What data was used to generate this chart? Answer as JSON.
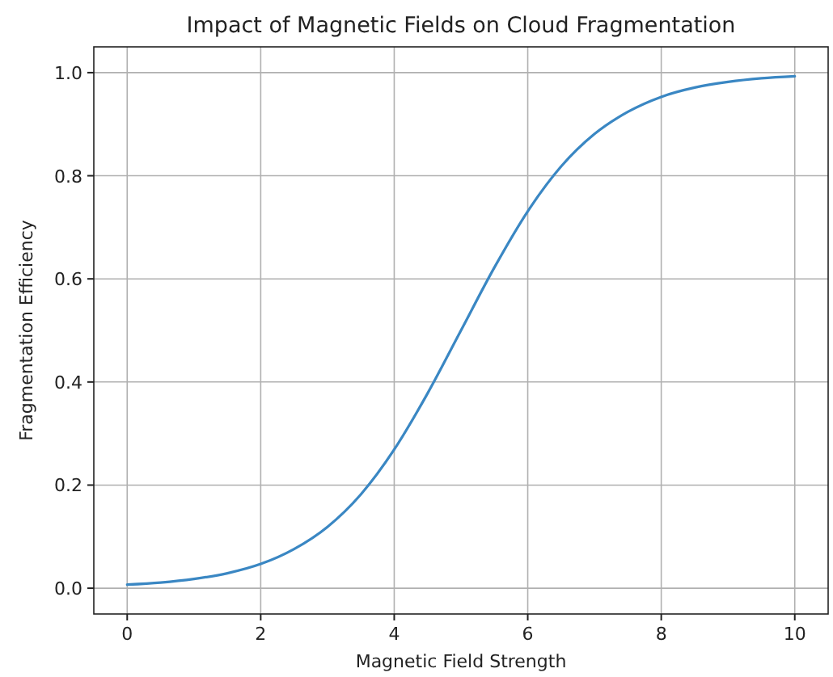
{
  "chart_data": {
    "type": "line",
    "title": "Impact of Magnetic Fields on Cloud Fragmentation",
    "xlabel": "Magnetic Field Strength",
    "ylabel": "Fragmentation Efficiency",
    "x": [
      0,
      0.5,
      1,
      1.5,
      2,
      2.5,
      3,
      3.5,
      4,
      4.5,
      5,
      5.5,
      6,
      6.5,
      7,
      7.5,
      8,
      8.5,
      9,
      9.5,
      10
    ],
    "series": [
      {
        "color": "#3a87c3",
        "values": [
          0.007,
          0.011,
          0.018,
          0.029,
          0.047,
          0.076,
          0.119,
          0.182,
          0.269,
          0.378,
          0.5,
          0.622,
          0.731,
          0.818,
          0.881,
          0.924,
          0.953,
          0.971,
          0.982,
          0.989,
          0.993
        ]
      }
    ],
    "xlim": [
      -0.5,
      10.5
    ],
    "xticks": [
      0,
      2,
      4,
      6,
      8,
      10
    ],
    "ylim": [
      -0.05,
      1.05
    ],
    "yticks": [
      {
        "value": 0,
        "label": "0.0"
      },
      {
        "value": 0.2,
        "label": "0.2"
      },
      {
        "value": 0.4,
        "label": "0.4"
      },
      {
        "value": 0.6,
        "label": "0.6"
      },
      {
        "value": 0.8,
        "label": "0.8"
      },
      {
        "value": 1,
        "label": "1.0"
      }
    ],
    "grid": true,
    "marker": "none",
    "line_style": "solid"
  }
}
